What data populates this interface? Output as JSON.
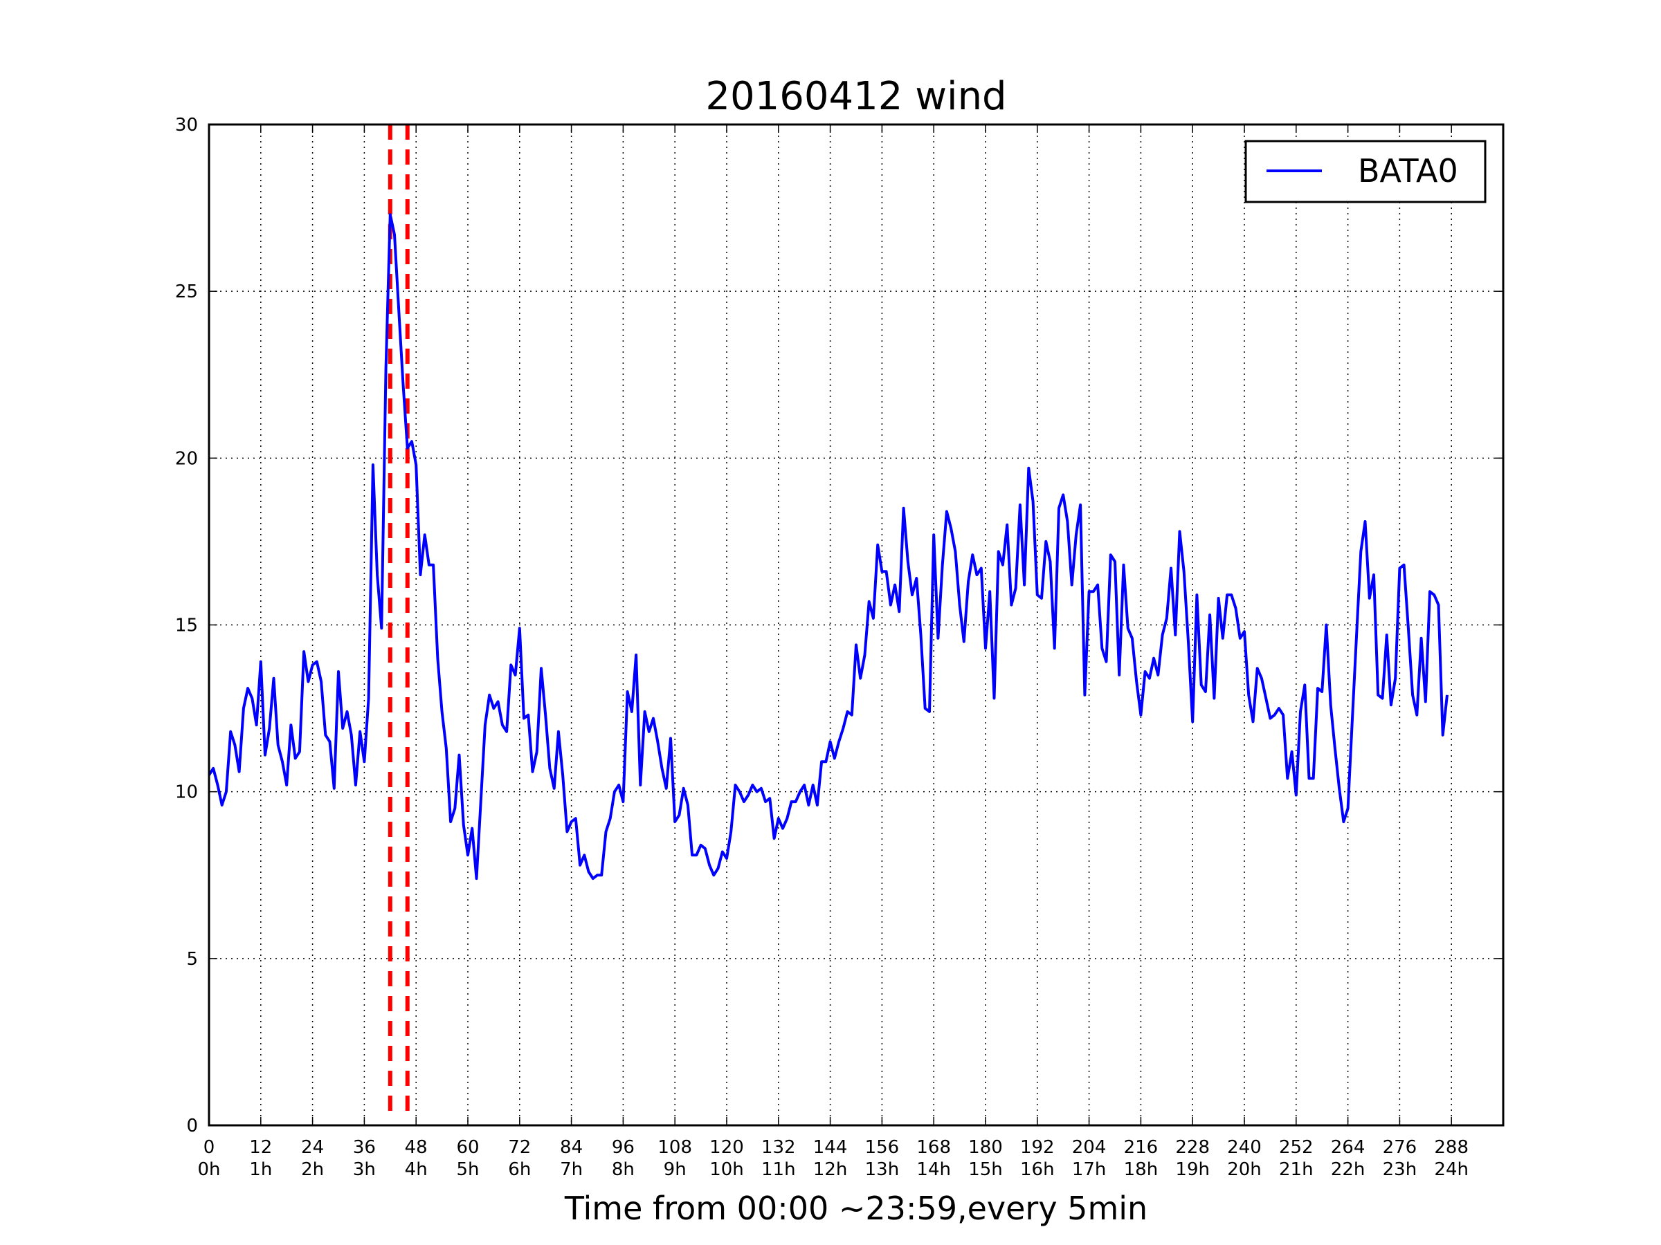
{
  "chart_data": {
    "type": "line",
    "title": "20160412 wind",
    "xlabel": "Time from 00:00 ~23:59,every 5min",
    "ylabel": "",
    "xlim": [
      0,
      300
    ],
    "ylim": [
      0,
      30
    ],
    "grid": true,
    "legend_position": "top-right",
    "x_ticks": [
      {
        "value": 0,
        "label": "0",
        "sublabel": "0h"
      },
      {
        "value": 12,
        "label": "12",
        "sublabel": "1h"
      },
      {
        "value": 24,
        "label": "24",
        "sublabel": "2h"
      },
      {
        "value": 36,
        "label": "36",
        "sublabel": "3h"
      },
      {
        "value": 48,
        "label": "48",
        "sublabel": "4h"
      },
      {
        "value": 60,
        "label": "60",
        "sublabel": "5h"
      },
      {
        "value": 72,
        "label": "72",
        "sublabel": "6h"
      },
      {
        "value": 84,
        "label": "84",
        "sublabel": "7h"
      },
      {
        "value": 96,
        "label": "96",
        "sublabel": "8h"
      },
      {
        "value": 108,
        "label": "108",
        "sublabel": "9h"
      },
      {
        "value": 120,
        "label": "120",
        "sublabel": "10h"
      },
      {
        "value": 132,
        "label": "132",
        "sublabel": "11h"
      },
      {
        "value": 144,
        "label": "144",
        "sublabel": "12h"
      },
      {
        "value": 156,
        "label": "156",
        "sublabel": "13h"
      },
      {
        "value": 168,
        "label": "168",
        "sublabel": "14h"
      },
      {
        "value": 180,
        "label": "180",
        "sublabel": "15h"
      },
      {
        "value": 192,
        "label": "192",
        "sublabel": "16h"
      },
      {
        "value": 204,
        "label": "204",
        "sublabel": "17h"
      },
      {
        "value": 216,
        "label": "216",
        "sublabel": "18h"
      },
      {
        "value": 228,
        "label": "228",
        "sublabel": "19h"
      },
      {
        "value": 240,
        "label": "240",
        "sublabel": "20h"
      },
      {
        "value": 252,
        "label": "252",
        "sublabel": "21h"
      },
      {
        "value": 264,
        "label": "264",
        "sublabel": "22h"
      },
      {
        "value": 276,
        "label": "276",
        "sublabel": "23h"
      },
      {
        "value": 288,
        "label": "288",
        "sublabel": "24h"
      }
    ],
    "y_ticks": [
      {
        "value": 0,
        "label": "0"
      },
      {
        "value": 5,
        "label": "5"
      },
      {
        "value": 10,
        "label": "10"
      },
      {
        "value": 15,
        "label": "15"
      },
      {
        "value": 20,
        "label": "20"
      },
      {
        "value": 25,
        "label": "25"
      },
      {
        "value": 30,
        "label": "30"
      }
    ],
    "markers": [
      {
        "x": 42,
        "color": "#ff0000",
        "style": "dashed"
      },
      {
        "x": 46,
        "color": "#ff0000",
        "style": "dashed"
      }
    ],
    "series": [
      {
        "name": "BATA0",
        "color": "#0000ff",
        "values": [
          10.5,
          10.7,
          10.2,
          9.6,
          10.0,
          11.8,
          11.4,
          10.6,
          12.5,
          13.1,
          12.8,
          12.0,
          13.9,
          11.1,
          11.9,
          13.4,
          11.4,
          10.9,
          10.2,
          12.0,
          11.0,
          11.2,
          14.2,
          13.3,
          13.8,
          13.9,
          13.3,
          11.7,
          11.5,
          10.1,
          13.6,
          11.9,
          12.4,
          11.7,
          10.2,
          11.8,
          10.9,
          12.8,
          19.8,
          16.5,
          14.9,
          22.7,
          27.3,
          26.7,
          24.4,
          22.2,
          20.3,
          20.5,
          19.8,
          16.5,
          17.7,
          16.8,
          16.8,
          14.0,
          12.4,
          11.3,
          9.1,
          9.5,
          11.1,
          9.0,
          8.1,
          8.9,
          7.4,
          9.7,
          12.0,
          12.9,
          12.5,
          12.7,
          12.0,
          11.8,
          13.8,
          13.5,
          14.9,
          12.2,
          12.3,
          10.6,
          11.2,
          13.7,
          12.3,
          10.7,
          10.1,
          11.8,
          10.5,
          8.8,
          9.1,
          9.2,
          7.8,
          8.1,
          7.6,
          7.4,
          7.5,
          7.5,
          8.8,
          9.2,
          10.0,
          10.2,
          9.7,
          13.0,
          12.4,
          14.1,
          10.2,
          12.4,
          11.8,
          12.2,
          11.5,
          10.7,
          10.1,
          11.6,
          9.1,
          9.3,
          10.1,
          9.6,
          8.1,
          8.1,
          8.4,
          8.3,
          7.8,
          7.5,
          7.7,
          8.2,
          8.0,
          8.8,
          10.2,
          10.0,
          9.7,
          9.9,
          10.2,
          10.0,
          10.1,
          9.7,
          9.8,
          8.6,
          9.2,
          8.9,
          9.2,
          9.7,
          9.7,
          10.0,
          10.2,
          9.6,
          10.2,
          9.6,
          10.9,
          10.9,
          11.5,
          11.0,
          11.5,
          11.9,
          12.4,
          12.3,
          14.4,
          13.4,
          14.1,
          15.7,
          15.2,
          17.4,
          16.6,
          16.6,
          15.6,
          16.2,
          15.4,
          18.5,
          16.9,
          15.9,
          16.4,
          14.7,
          12.5,
          12.4,
          17.7,
          14.6,
          16.8,
          18.4,
          17.9,
          17.2,
          15.6,
          14.5,
          16.3,
          17.1,
          16.5,
          16.7,
          14.3,
          16.0,
          12.8,
          17.2,
          16.8,
          18.0,
          15.6,
          16.1,
          18.6,
          16.2,
          19.7,
          18.7,
          15.9,
          15.8,
          17.5,
          16.9,
          14.3,
          18.5,
          18.9,
          18.1,
          16.2,
          17.7,
          18.6,
          12.9,
          16.0,
          16.0,
          16.2,
          14.3,
          13.9,
          17.1,
          16.9,
          13.5,
          16.8,
          14.9,
          14.6,
          13.3,
          12.3,
          13.6,
          13.4,
          14.0,
          13.5,
          14.7,
          15.2,
          16.7,
          14.7,
          17.8,
          16.6,
          14.5,
          12.1,
          15.9,
          13.2,
          13.0,
          15.3,
          12.8,
          15.8,
          14.6,
          15.9,
          15.9,
          15.5,
          14.6,
          14.8,
          12.9,
          12.1,
          13.7,
          13.4,
          12.8,
          12.2,
          12.3,
          12.5,
          12.3,
          10.4,
          11.2,
          9.9,
          12.4,
          13.2,
          10.4,
          10.4,
          13.1,
          13.0,
          15.0,
          12.6,
          11.3,
          10.1,
          9.1,
          9.5,
          12.1,
          14.7,
          17.2,
          18.1,
          15.8,
          16.5,
          12.9,
          12.8,
          14.7,
          12.6,
          13.4,
          16.7,
          16.8,
          14.9,
          12.9,
          12.3,
          14.6,
          12.7,
          16.0,
          15.9,
          15.6,
          11.7,
          12.9
        ]
      }
    ]
  }
}
